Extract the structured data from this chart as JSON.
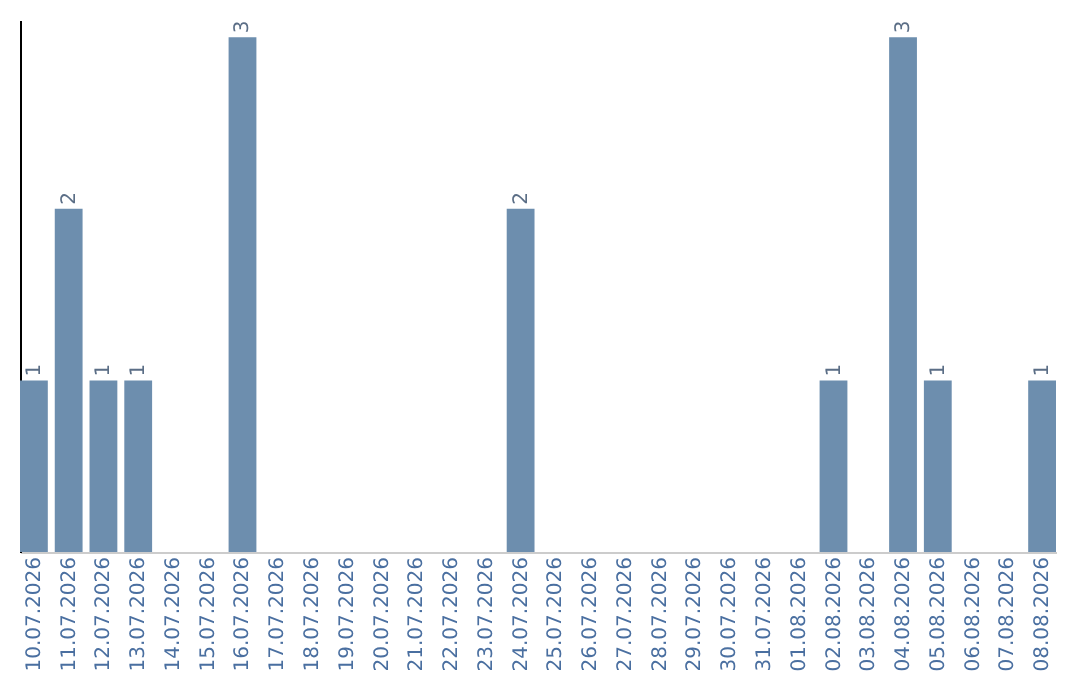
{
  "chart_data": {
    "type": "bar",
    "categories": [
      "10.07.2026",
      "11.07.2026",
      "12.07.2026",
      "13.07.2026",
      "14.07.2026",
      "15.07.2026",
      "16.07.2026",
      "17.07.2026",
      "18.07.2026",
      "19.07.2026",
      "20.07.2026",
      "21.07.2026",
      "22.07.2026",
      "23.07.2026",
      "24.07.2026",
      "25.07.2026",
      "26.07.2026",
      "27.07.2026",
      "28.07.2026",
      "29.07.2026",
      "30.07.2026",
      "31.07.2026",
      "01.08.2026",
      "02.08.2026",
      "03.08.2026",
      "04.08.2026",
      "05.08.2026",
      "06.08.2026",
      "07.08.2026",
      "08.08.2026"
    ],
    "values": [
      1,
      2,
      1,
      1,
      null,
      null,
      3,
      null,
      null,
      null,
      null,
      null,
      null,
      null,
      2,
      null,
      null,
      null,
      null,
      null,
      null,
      null,
      null,
      1,
      null,
      3,
      1,
      null,
      null,
      1
    ],
    "color": "#6d8eae",
    "ylim": [
      0,
      3.1
    ],
    "data_labels": true,
    "tick_labels": "x",
    "grid": false
  }
}
